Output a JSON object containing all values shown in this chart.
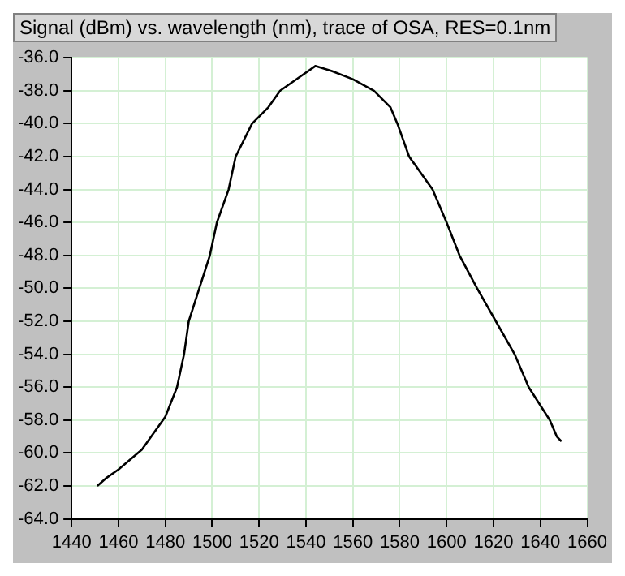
{
  "chart_data": {
    "type": "line",
    "title": "Signal (dBm) vs. wavelength (nm), trace of OSA, RES=0.1nm",
    "series": [
      {
        "color": "#000000",
        "x": [
          1451,
          1455,
          1460,
          1465,
          1470,
          1475,
          1480,
          1485,
          1488,
          1490,
          1494.5,
          1499,
          1502,
          1507,
          1510,
          1517,
          1524,
          1529,
          1537,
          1544,
          1551,
          1560,
          1569,
          1576,
          1579,
          1584,
          1594,
          1600,
          1605.5,
          1613,
          1621,
          1629,
          1635,
          1639.5,
          1644,
          1647,
          1649
        ],
        "values": [
          -62.0,
          -61.5,
          -61.0,
          -60.4,
          -59.8,
          -58.8,
          -57.8,
          -56.0,
          -54.0,
          -52.0,
          -50.0,
          -48.0,
          -46.0,
          -44.0,
          -42.0,
          -40.0,
          -39.0,
          -38.0,
          -37.2,
          -36.5,
          -36.8,
          -37.3,
          -38.0,
          -39.0,
          -40.0,
          -42.0,
          -44.0,
          -46.0,
          -48.0,
          -50.0,
          -52.0,
          -54.0,
          -56.0,
          -57.0,
          -58.0,
          -59.0,
          -59.3
        ]
      }
    ],
    "xlim": [
      1440,
      1660
    ],
    "xticks": [
      1440,
      1460,
      1480,
      1500,
      1520,
      1540,
      1560,
      1580,
      1600,
      1620,
      1640,
      1660
    ],
    "ylim": [
      -64,
      -36
    ],
    "yticks": [
      {
        "value": -64,
        "label": "-64.0"
      },
      {
        "value": -62,
        "label": "-62.0"
      },
      {
        "value": -60,
        "label": "-60.0"
      },
      {
        "value": -58,
        "label": "-58.0"
      },
      {
        "value": -56,
        "label": "-56.0"
      },
      {
        "value": -54,
        "label": "-54.0"
      },
      {
        "value": -52,
        "label": "-52.0"
      },
      {
        "value": -50,
        "label": "-50.0"
      },
      {
        "value": -48,
        "label": "-48.0"
      },
      {
        "value": -46,
        "label": "-46.0"
      },
      {
        "value": -44,
        "label": "-44.0"
      },
      {
        "value": -42,
        "label": "-42.0"
      },
      {
        "value": -40,
        "label": "-40.0"
      },
      {
        "value": -38,
        "label": "-38.0"
      },
      {
        "value": -36,
        "label": "-36.0"
      }
    ],
    "grid": true,
    "legend": false,
    "marker": "none",
    "line_style": "solid"
  }
}
